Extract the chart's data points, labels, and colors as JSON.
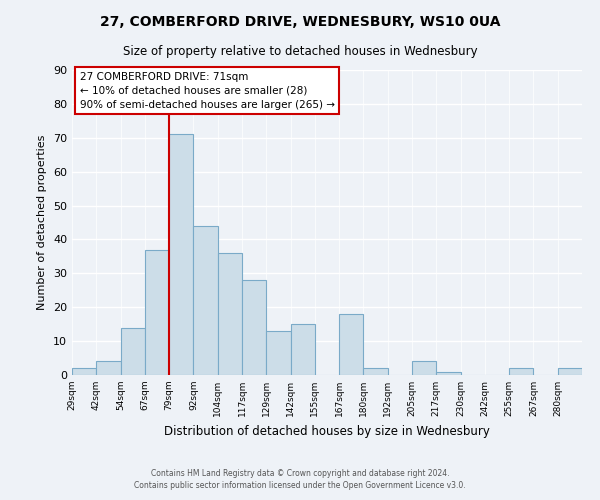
{
  "title": "27, COMBERFORD DRIVE, WEDNESBURY, WS10 0UA",
  "subtitle": "Size of property relative to detached houses in Wednesbury",
  "xlabel": "Distribution of detached houses by size in Wednesbury",
  "ylabel": "Number of detached properties",
  "bin_labels": [
    "29sqm",
    "42sqm",
    "54sqm",
    "67sqm",
    "79sqm",
    "92sqm",
    "104sqm",
    "117sqm",
    "129sqm",
    "142sqm",
    "155sqm",
    "167sqm",
    "180sqm",
    "192sqm",
    "205sqm",
    "217sqm",
    "230sqm",
    "242sqm",
    "255sqm",
    "267sqm",
    "280sqm"
  ],
  "bar_values": [
    2,
    4,
    14,
    37,
    71,
    44,
    36,
    28,
    13,
    15,
    0,
    18,
    2,
    0,
    4,
    1,
    0,
    0,
    2,
    0,
    2
  ],
  "bar_color": "#ccdde8",
  "bar_edge_color": "#7aaac8",
  "highlight_line_color": "#cc0000",
  "ylim": [
    0,
    90
  ],
  "yticks": [
    0,
    10,
    20,
    30,
    40,
    50,
    60,
    70,
    80,
    90
  ],
  "annotation_text_line1": "27 COMBERFORD DRIVE: 71sqm",
  "annotation_text_line2": "← 10% of detached houses are smaller (28)",
  "annotation_text_line3": "90% of semi-detached houses are larger (265) →",
  "footer_line1": "Contains HM Land Registry data © Crown copyright and database right 2024.",
  "footer_line2": "Contains public sector information licensed under the Open Government Licence v3.0.",
  "background_color": "#eef2f7",
  "grid_color": "#ffffff"
}
